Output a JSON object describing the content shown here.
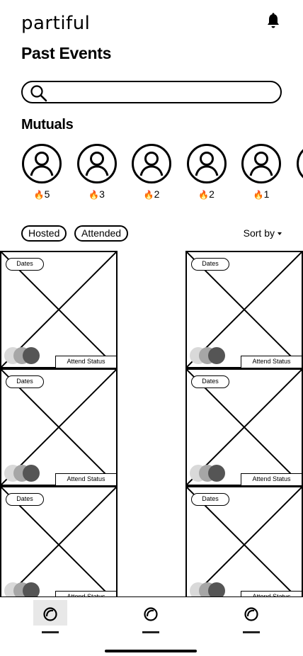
{
  "app": {
    "logo_text": "partiful"
  },
  "header": {
    "title": "Past Events"
  },
  "search": {
    "value": "",
    "placeholder": ""
  },
  "mutuals": {
    "title": "Mutuals",
    "items": [
      {
        "score": "5"
      },
      {
        "score": "3"
      },
      {
        "score": "2"
      },
      {
        "score": "2"
      },
      {
        "score": "1"
      },
      {
        "score": ""
      }
    ],
    "fire_emoji": "🔥"
  },
  "filters": {
    "hosted_label": "Hosted",
    "attended_label": "Attended",
    "sort_label": "Sort by"
  },
  "events": {
    "cards": [
      {
        "dates_label": "Dates",
        "attend_label": "Attend Status"
      },
      {
        "dates_label": "Dates",
        "attend_label": "Attend Status"
      },
      {
        "dates_label": "Dates",
        "attend_label": "Attend Status"
      },
      {
        "dates_label": "Dates",
        "attend_label": "Attend Status"
      },
      {
        "dates_label": "Dates",
        "attend_label": "Attend Status"
      },
      {
        "dates_label": "Dates",
        "attend_label": "Attend Status"
      }
    ],
    "avatar_colors": [
      "#d9d9d9",
      "#a6a6a6",
      "#555555"
    ]
  },
  "tabbar": {
    "tabs": [
      {
        "name": "tab-1"
      },
      {
        "name": "tab-2"
      },
      {
        "name": "tab-3"
      }
    ]
  }
}
